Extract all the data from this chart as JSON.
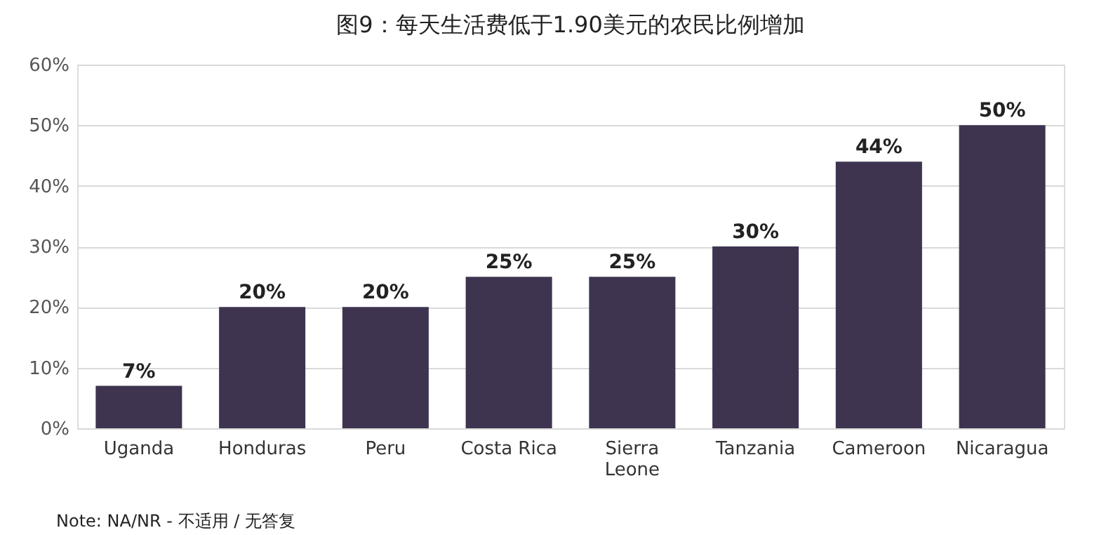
{
  "chart_data": {
    "type": "bar",
    "title": "图9：每天生活费低于1.90美元的农民比例增加",
    "categories": [
      "Uganda",
      "Honduras",
      "Peru",
      "Costa Rica",
      "Sierra Leone",
      "Tanzania",
      "Cameroon",
      "Nicaragua"
    ],
    "values": [
      7,
      20,
      20,
      25,
      25,
      30,
      44,
      50
    ],
    "value_labels": [
      "7%",
      "20%",
      "20%",
      "25%",
      "25%",
      "30%",
      "44%",
      "50%"
    ],
    "color": "#3e3450",
    "ylim": [
      0,
      60
    ],
    "yticks": [
      {
        "value": 0,
        "label": "0%"
      },
      {
        "value": 10,
        "label": "10%"
      },
      {
        "value": 20,
        "label": "20%"
      },
      {
        "value": 30,
        "label": "30%"
      },
      {
        "value": 40,
        "label": "40%"
      },
      {
        "value": 50,
        "label": "50%"
      },
      {
        "value": 60,
        "label": "60%"
      }
    ],
    "grid": "y",
    "annotations": [
      "Note: NA/NR - 不适用 / 无答复"
    ]
  }
}
